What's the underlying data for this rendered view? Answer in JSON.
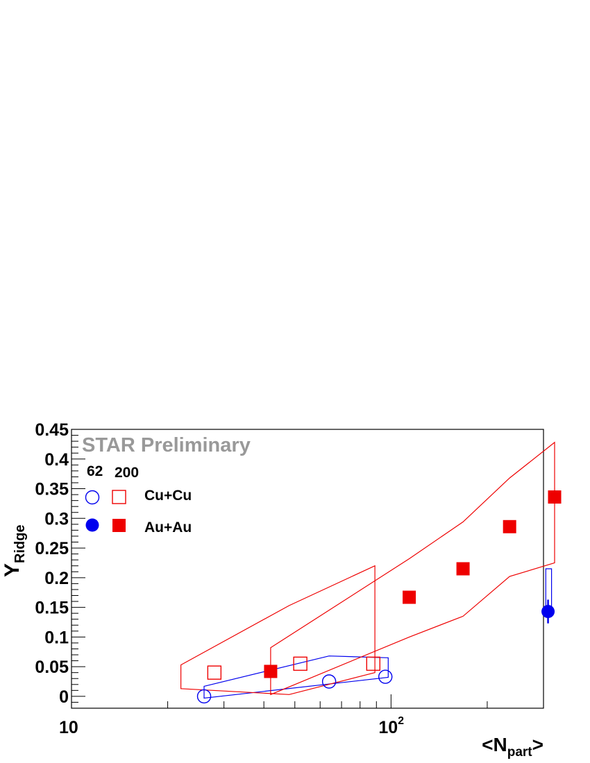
{
  "chart_data": {
    "type": "scatter",
    "title": "",
    "annotation": "STAR Preliminary",
    "xlabel": {
      "main": "<N",
      "sub": "part",
      "end": ">"
    },
    "ylabel": {
      "main": "Y",
      "sub": "Ridge"
    },
    "x_scale": "log",
    "xlim": [
      10,
      300
    ],
    "ylim": [
      -0.02,
      0.45
    ],
    "x_tick_labels": [
      {
        "value": 10,
        "base": "10",
        "exp": ""
      },
      {
        "value": 100,
        "base": "10",
        "exp": "2"
      }
    ],
    "y_ticks": [
      0,
      0.05,
      0.1,
      0.15,
      0.2,
      0.25,
      0.3,
      0.35,
      0.4,
      0.45
    ],
    "y_tick_labels": [
      "0",
      "0.05",
      "0.1",
      "0.15",
      "0.2",
      "0.25",
      "0.3",
      "0.35",
      "0.4",
      "0.45"
    ],
    "grid": false,
    "legend": {
      "placement": "top-left",
      "column_headers": [
        "62",
        "200"
      ],
      "rows": [
        {
          "label": "Cu+Cu",
          "marker_62": "open-circle",
          "marker_200": "open-square"
        },
        {
          "label": "Au+Au",
          "marker_62": "filled-circle",
          "marker_200": "filled-square"
        }
      ]
    },
    "series": [
      {
        "id": "cucu62",
        "marker": "open-circle",
        "color": "#0000ee",
        "points": [
          {
            "x": 26,
            "y": 0.0
          },
          {
            "x": 64,
            "y": 0.025
          },
          {
            "x": 96,
            "y": 0.033
          }
        ],
        "systematic_band": [
          [
            26,
            0.017
          ],
          [
            64,
            0.068
          ],
          [
            98,
            0.065
          ],
          [
            98,
            0.032
          ],
          [
            26,
            -0.003
          ]
        ]
      },
      {
        "id": "cucu200",
        "marker": "open-square",
        "color": "#ee0000",
        "points": [
          {
            "x": 28,
            "y": 0.04
          },
          {
            "x": 52,
            "y": 0.055
          },
          {
            "x": 88,
            "y": 0.055
          }
        ],
        "systematic_band": [
          [
            22,
            0.053
          ],
          [
            48,
            0.153
          ],
          [
            89,
            0.22
          ],
          [
            89,
            0.04
          ],
          [
            48,
            0.003
          ],
          [
            22,
            0.013
          ]
        ]
      },
      {
        "id": "auau62",
        "marker": "filled-circle",
        "color": "#0000ee",
        "points": [
          {
            "x": 310,
            "y": 0.143,
            "err_low": 0.123,
            "err_high": 0.163
          }
        ],
        "systematic_band": [
          [
            305,
            0.215
          ],
          [
            318,
            0.215
          ],
          [
            318,
            0.14
          ],
          [
            305,
            0.14
          ]
        ]
      },
      {
        "id": "auau200",
        "marker": "filled-square",
        "color": "#ee0000",
        "points": [
          {
            "x": 42,
            "y": 0.042
          },
          {
            "x": 114,
            "y": 0.167
          },
          {
            "x": 168,
            "y": 0.215
          },
          {
            "x": 235,
            "y": 0.286
          },
          {
            "x": 325,
            "y": 0.336
          }
        ],
        "systematic_band": [
          [
            42,
            0.082
          ],
          [
            114,
            0.232
          ],
          [
            168,
            0.294
          ],
          [
            235,
            0.368
          ],
          [
            325,
            0.428
          ],
          [
            325,
            0.225
          ],
          [
            235,
            0.202
          ],
          [
            168,
            0.135
          ],
          [
            114,
            0.1
          ],
          [
            42,
            0.003
          ]
        ]
      }
    ]
  },
  "colors": {
    "star_blue": "#0000ee",
    "star_red": "#ee0000",
    "watermark": "#999999",
    "frame": "#000000"
  }
}
